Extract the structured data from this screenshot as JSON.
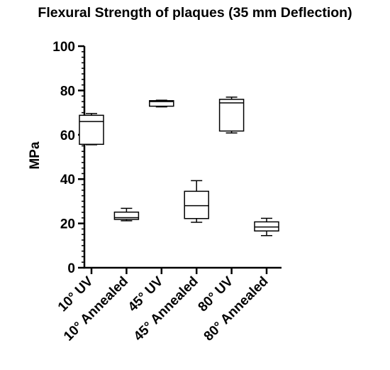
{
  "chart_data": {
    "type": "box",
    "title": "Flexural Strength of plaques (35 mm Deflection)",
    "xlabel": "",
    "ylabel": "MPa",
    "ylim": [
      0,
      100
    ],
    "yticks": [
      0,
      20,
      40,
      60,
      80,
      100
    ],
    "categories": [
      "10° UV",
      "10° Annealed",
      "45° UV",
      "45° Annealed",
      "80° UV",
      "80° Annealed"
    ],
    "boxes": [
      {
        "category": "10° UV",
        "min": 55.5,
        "q1": 55.7,
        "median": 66.0,
        "q3": 68.8,
        "max": 69.6
      },
      {
        "category": "10° Annealed",
        "min": 21.2,
        "q1": 21.8,
        "median": 22.6,
        "q3": 25.1,
        "max": 26.8
      },
      {
        "category": "45° UV",
        "min": 72.6,
        "q1": 72.9,
        "median": 75.0,
        "q3": 75.4,
        "max": 75.6
      },
      {
        "category": "45° Annealed",
        "min": 20.5,
        "q1": 22.2,
        "median": 28.0,
        "q3": 34.5,
        "max": 39.3
      },
      {
        "category": "80° UV",
        "min": 60.8,
        "q1": 61.7,
        "median": 74.4,
        "q3": 76.0,
        "max": 77.0
      },
      {
        "category": "80° Annealed",
        "min": 14.5,
        "q1": 16.6,
        "median": 18.4,
        "q3": 20.7,
        "max": 22.3
      }
    ],
    "grid": false,
    "legend": "none"
  }
}
